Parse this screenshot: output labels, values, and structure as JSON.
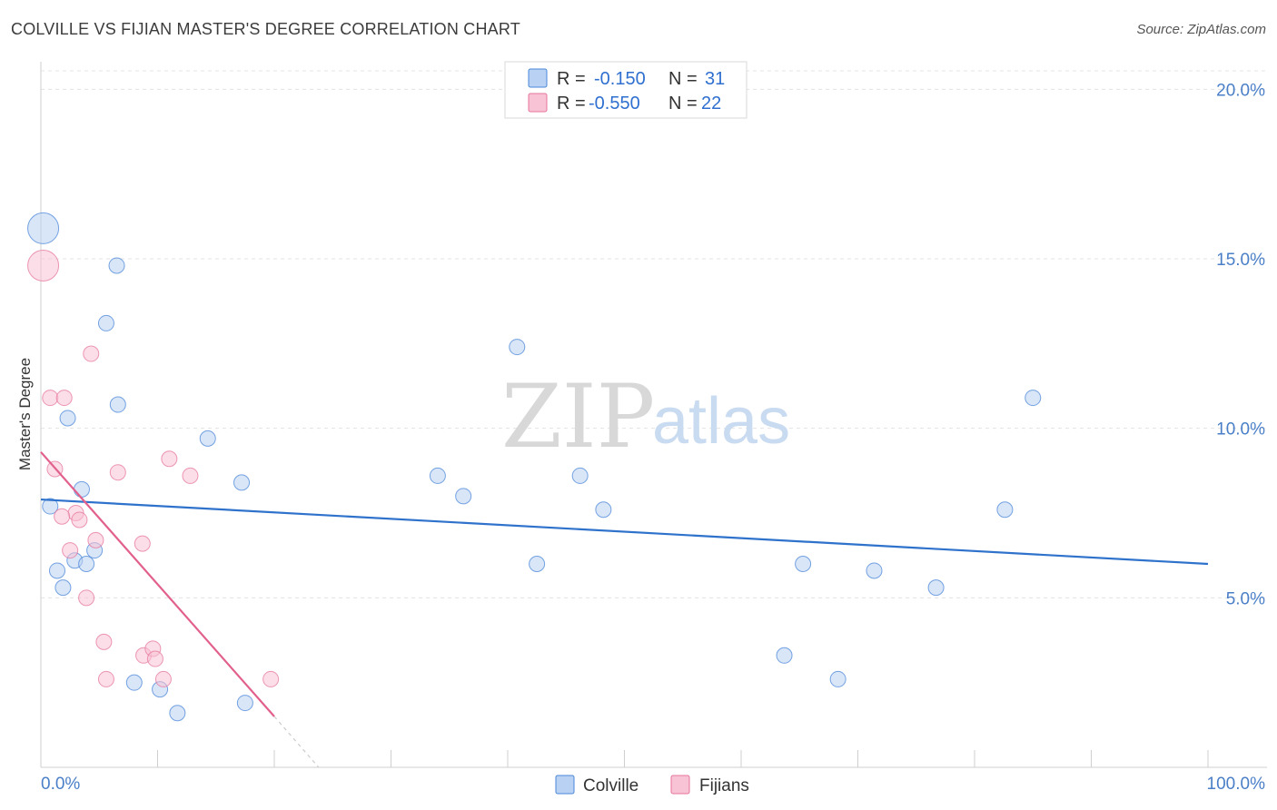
{
  "header": {
    "title": "COLVILLE VS FIJIAN MASTER'S DEGREE CORRELATION CHART",
    "source": "Source: ZipAtlas.com"
  },
  "watermark": {
    "zip": "ZIP",
    "atlas": "atlas"
  },
  "chart_data": {
    "type": "scatter",
    "title": "COLVILLE VS FIJIAN MASTER'S DEGREE CORRELATION CHART",
    "xlabel": "",
    "ylabel": "Master's Degree",
    "xlim": [
      0,
      100
    ],
    "ylim": [
      0,
      21
    ],
    "x_tick_labels": {
      "min": "0.0%",
      "max": "100.0%"
    },
    "y_ticks": [
      {
        "value": 5,
        "label": "5.0%"
      },
      {
        "value": 10,
        "label": "10.0%"
      },
      {
        "value": 15,
        "label": "15.0%"
      },
      {
        "value": 20,
        "label": "20.0%"
      }
    ],
    "grid": true,
    "legend_position": "top-center",
    "series": [
      {
        "name": "Colville",
        "color": "#4a86d8",
        "fill": "#b9d2f3",
        "r_label": "R =",
        "r_value": "-0.150",
        "n_label": "N =",
        "n_value": "31",
        "trend": {
          "x0": 0,
          "y0": 7.9,
          "x1": 100,
          "y1": 6.0
        },
        "points": [
          {
            "x": 0.2,
            "y": 15.9,
            "big": true
          },
          {
            "x": 6.5,
            "y": 14.8
          },
          {
            "x": 5.6,
            "y": 13.1
          },
          {
            "x": 2.3,
            "y": 10.3
          },
          {
            "x": 6.6,
            "y": 10.7
          },
          {
            "x": 14.3,
            "y": 9.7
          },
          {
            "x": 17.2,
            "y": 8.4
          },
          {
            "x": 3.5,
            "y": 8.2
          },
          {
            "x": 0.8,
            "y": 7.7
          },
          {
            "x": 4.6,
            "y": 6.4
          },
          {
            "x": 2.9,
            "y": 6.1
          },
          {
            "x": 3.9,
            "y": 6.0
          },
          {
            "x": 1.4,
            "y": 5.8
          },
          {
            "x": 1.9,
            "y": 5.3
          },
          {
            "x": 8.0,
            "y": 2.5
          },
          {
            "x": 10.2,
            "y": 2.3
          },
          {
            "x": 11.7,
            "y": 1.6
          },
          {
            "x": 17.5,
            "y": 1.9
          },
          {
            "x": 34.0,
            "y": 8.6
          },
          {
            "x": 36.2,
            "y": 8.0
          },
          {
            "x": 40.8,
            "y": 12.4
          },
          {
            "x": 42.5,
            "y": 6.0
          },
          {
            "x": 46.2,
            "y": 8.6
          },
          {
            "x": 48.2,
            "y": 7.6
          },
          {
            "x": 63.7,
            "y": 3.3
          },
          {
            "x": 65.3,
            "y": 6.0
          },
          {
            "x": 68.3,
            "y": 2.6
          },
          {
            "x": 71.4,
            "y": 5.8
          },
          {
            "x": 76.7,
            "y": 5.3
          },
          {
            "x": 82.6,
            "y": 7.6
          },
          {
            "x": 85.0,
            "y": 10.9
          }
        ]
      },
      {
        "name": "Fijians",
        "color": "#e7769c",
        "fill": "#f8c3d4",
        "r_label": "R =",
        "r_value": "-0.550",
        "n_label": "N =",
        "n_value": "22",
        "trend": {
          "x0": 0,
          "y0": 9.3,
          "x1": 20.0,
          "y1": 1.5,
          "dash_x1": 23.8,
          "dash_y1": 0.0
        },
        "points": [
          {
            "x": 0.2,
            "y": 14.8,
            "big": true
          },
          {
            "x": 4.3,
            "y": 12.2
          },
          {
            "x": 0.8,
            "y": 10.9
          },
          {
            "x": 2.0,
            "y": 10.9
          },
          {
            "x": 1.2,
            "y": 8.8
          },
          {
            "x": 6.6,
            "y": 8.7
          },
          {
            "x": 11.0,
            "y": 9.1
          },
          {
            "x": 12.8,
            "y": 8.6
          },
          {
            "x": 3.0,
            "y": 7.5
          },
          {
            "x": 3.3,
            "y": 7.3
          },
          {
            "x": 1.8,
            "y": 7.4
          },
          {
            "x": 4.7,
            "y": 6.7
          },
          {
            "x": 2.5,
            "y": 6.4
          },
          {
            "x": 8.7,
            "y": 6.6
          },
          {
            "x": 3.9,
            "y": 5.0
          },
          {
            "x": 5.4,
            "y": 3.7
          },
          {
            "x": 5.6,
            "y": 2.6
          },
          {
            "x": 8.8,
            "y": 3.3
          },
          {
            "x": 9.6,
            "y": 3.5
          },
          {
            "x": 9.8,
            "y": 3.2
          },
          {
            "x": 10.5,
            "y": 2.6
          },
          {
            "x": 19.7,
            "y": 2.6
          }
        ]
      }
    ]
  }
}
